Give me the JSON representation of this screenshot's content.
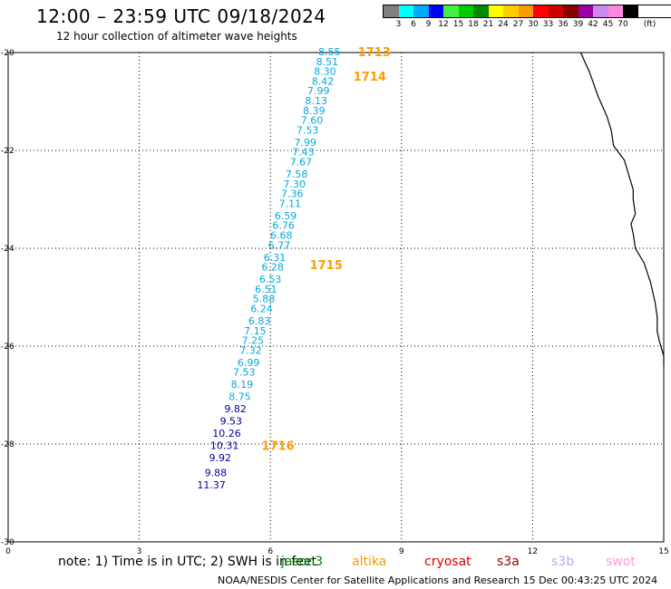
{
  "header": {
    "title": "12:00 – 23:59 UTC 09/18/2024",
    "subtitle": "12 hour collection of altimeter wave heights"
  },
  "legend": {
    "unit": "(ft)",
    "colors": [
      "#808080",
      "#00ffff",
      "#00aaff",
      "#0000ff",
      "#44ee44",
      "#00cc00",
      "#008800",
      "#ffff00",
      "#ffcc00",
      "#ff9900",
      "#ff0000",
      "#cc0000",
      "#880000",
      "#9900aa",
      "#cc88ee",
      "#ff88dd",
      "#000000"
    ],
    "labels": [
      "3",
      "6",
      "9",
      "12",
      "15",
      "18",
      "21",
      "24",
      "27",
      "30",
      "33",
      "36",
      "39",
      "42",
      "45",
      "70"
    ]
  },
  "map": {
    "x_ticks": [
      "0",
      "3",
      "6",
      "9",
      "12",
      "15"
    ],
    "y_ticks": [
      "-20",
      "-22",
      "-24",
      "-26",
      "-28",
      "-30"
    ],
    "x_range": [
      0,
      15
    ],
    "y_range": [
      -30,
      -20
    ],
    "colors": {
      "light": "#00aadd",
      "dark": "#0000aa",
      "pass": "#ff9900",
      "coast": "#000000",
      "grid": "#000000"
    },
    "coastline": [
      [
        13.1,
        -20.0
      ],
      [
        13.3,
        -20.4
      ],
      [
        13.5,
        -20.9
      ],
      [
        13.7,
        -21.3
      ],
      [
        13.8,
        -21.6
      ],
      [
        13.85,
        -21.9
      ],
      [
        14.1,
        -22.2
      ],
      [
        14.2,
        -22.5
      ],
      [
        14.3,
        -22.8
      ],
      [
        14.3,
        -23.0
      ],
      [
        14.35,
        -23.3
      ],
      [
        14.25,
        -23.5
      ],
      [
        14.3,
        -23.7
      ],
      [
        14.35,
        -24.0
      ],
      [
        14.55,
        -24.3
      ],
      [
        14.7,
        -24.7
      ],
      [
        14.8,
        -25.1
      ],
      [
        14.85,
        -25.4
      ],
      [
        14.85,
        -25.7
      ],
      [
        14.9,
        -25.9
      ],
      [
        15.0,
        -26.2
      ],
      [
        15.0,
        -26.4
      ]
    ],
    "passes": [
      {
        "label": "1713",
        "x": 8.0,
        "y": -20.0
      },
      {
        "label": "1714",
        "x": 7.9,
        "y": -20.5
      },
      {
        "label": "1715",
        "x": 6.9,
        "y": -24.35
      },
      {
        "label": "1716",
        "x": 5.8,
        "y": -28.05
      }
    ],
    "values": [
      {
        "v": "8.55",
        "x": 7.35,
        "y": -20.0,
        "c": "light"
      },
      {
        "v": "8.51",
        "x": 7.3,
        "y": -20.2,
        "c": "light"
      },
      {
        "v": "8.30",
        "x": 7.25,
        "y": -20.4,
        "c": "light"
      },
      {
        "v": "8.42",
        "x": 7.2,
        "y": -20.6,
        "c": "light"
      },
      {
        "v": "7.99",
        "x": 7.1,
        "y": -20.8,
        "c": "light"
      },
      {
        "v": "8.13",
        "x": 7.05,
        "y": -21.0,
        "c": "light"
      },
      {
        "v": "8.39",
        "x": 7.0,
        "y": -21.2,
        "c": "light"
      },
      {
        "v": "7.60",
        "x": 6.95,
        "y": -21.4,
        "c": "light"
      },
      {
        "v": "7.53",
        "x": 6.85,
        "y": -21.6,
        "c": "light"
      },
      {
        "v": "7.99",
        "x": 6.8,
        "y": -21.85,
        "c": "light"
      },
      {
        "v": "7.43",
        "x": 6.75,
        "y": -22.05,
        "c": "light"
      },
      {
        "v": "7.67",
        "x": 6.7,
        "y": -22.25,
        "c": "light"
      },
      {
        "v": "7.58",
        "x": 6.6,
        "y": -22.5,
        "c": "light"
      },
      {
        "v": "7.30",
        "x": 6.55,
        "y": -22.7,
        "c": "light"
      },
      {
        "v": "7.36",
        "x": 6.5,
        "y": -22.9,
        "c": "light"
      },
      {
        "v": "7.11",
        "x": 6.45,
        "y": -23.1,
        "c": "light"
      },
      {
        "v": "6.59",
        "x": 6.35,
        "y": -23.35,
        "c": "light"
      },
      {
        "v": "6.76",
        "x": 6.3,
        "y": -23.55,
        "c": "light"
      },
      {
        "v": "6.68",
        "x": 6.25,
        "y": -23.75,
        "c": "light"
      },
      {
        "v": "6.77",
        "x": 6.2,
        "y": -23.95,
        "c": "light"
      },
      {
        "v": "6.31",
        "x": 6.1,
        "y": -24.2,
        "c": "light"
      },
      {
        "v": "6.28",
        "x": 6.05,
        "y": -24.4,
        "c": "light"
      },
      {
        "v": "6.53",
        "x": 6.0,
        "y": -24.65,
        "c": "light"
      },
      {
        "v": "6.51",
        "x": 5.9,
        "y": -24.85,
        "c": "light"
      },
      {
        "v": "5.88",
        "x": 5.85,
        "y": -25.05,
        "c": "light"
      },
      {
        "v": "6.24",
        "x": 5.8,
        "y": -25.25,
        "c": "light"
      },
      {
        "v": "6.83",
        "x": 5.75,
        "y": -25.5,
        "c": "light"
      },
      {
        "v": "7.15",
        "x": 5.65,
        "y": -25.7,
        "c": "light"
      },
      {
        "v": "7.25",
        "x": 5.6,
        "y": -25.9,
        "c": "light"
      },
      {
        "v": "7.32",
        "x": 5.55,
        "y": -26.1,
        "c": "light"
      },
      {
        "v": "6.99",
        "x": 5.5,
        "y": -26.35,
        "c": "light"
      },
      {
        "v": "7.53",
        "x": 5.4,
        "y": -26.55,
        "c": "light"
      },
      {
        "v": "8.19",
        "x": 5.35,
        "y": -26.8,
        "c": "light"
      },
      {
        "v": "8.75",
        "x": 5.3,
        "y": -27.05,
        "c": "light"
      },
      {
        "v": "9.82",
        "x": 5.2,
        "y": -27.3,
        "c": "dark"
      },
      {
        "v": "9.53",
        "x": 5.1,
        "y": -27.55,
        "c": "dark"
      },
      {
        "v": "10.26",
        "x": 5.0,
        "y": -27.8,
        "c": "dark"
      },
      {
        "v": "10.31",
        "x": 4.95,
        "y": -28.05,
        "c": "dark"
      },
      {
        "v": "9.92",
        "x": 4.85,
        "y": -28.3,
        "c": "dark"
      },
      {
        "v": "9.88",
        "x": 4.75,
        "y": -28.6,
        "c": "dark"
      },
      {
        "v": "11.37",
        "x": 4.65,
        "y": -28.85,
        "c": "dark"
      }
    ]
  },
  "footer": {
    "note": "note: 1) Time is in UTC; 2) SWH is in feet",
    "satellites": [
      {
        "name": "jason3",
        "color": "#008800"
      },
      {
        "name": "altika",
        "color": "#ff9900"
      },
      {
        "name": "cryosat",
        "color": "#dd0000"
      },
      {
        "name": "s3a",
        "color": "#990000"
      },
      {
        "name": "s3b",
        "color": "#bbaaee"
      },
      {
        "name": "swot",
        "color": "#ff99dd"
      }
    ],
    "credit": "NOAA/NESDIS Center for Satellite Applications and Research    15 Dec 00:43:25 UTC 2024"
  }
}
